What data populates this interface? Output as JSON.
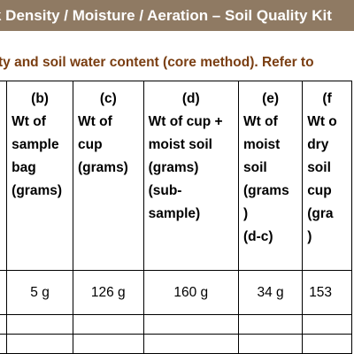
{
  "header": {
    "title": "k Density / Moisture / Aeration – Soil Quality Kit"
  },
  "subtitle": "ty and soil water content (core method). Refer to",
  "table": {
    "columns": [
      {
        "letter": "(b)",
        "lines": [
          "Wt of",
          "sample",
          "bag",
          "(grams)"
        ]
      },
      {
        "letter": "(c)",
        "lines": [
          "Wt of",
          "cup",
          "(grams)"
        ]
      },
      {
        "letter": "(d)",
        "lines": [
          "Wt of cup +",
          "moist soil",
          "(grams)",
          "(sub-",
          "sample)"
        ]
      },
      {
        "letter": "(e)",
        "lines": [
          "Wt of",
          "moist",
          "soil",
          "(grams",
          ")",
          "(d-c)"
        ]
      },
      {
        "letter": "(f",
        "lines": [
          "Wt o",
          "dry",
          "soil",
          "cup",
          "(gra",
          ")"
        ]
      }
    ],
    "rows": [
      [
        "5 g",
        "126 g",
        "160 g",
        "34 g",
        "153"
      ]
    ]
  }
}
